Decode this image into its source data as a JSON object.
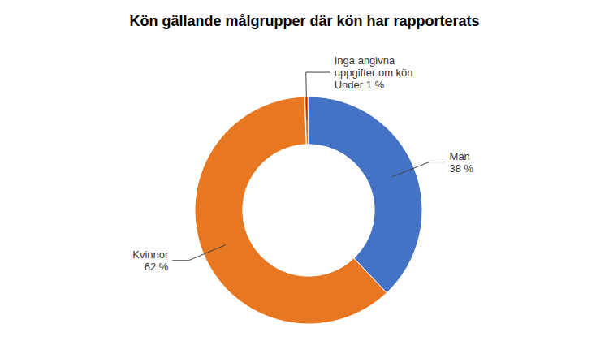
{
  "chart_data": {
    "type": "pie",
    "title": "Kön gällande målgrupper där kön har rapporterats",
    "categories": [
      "Inga angivna\nuppgifter om kön",
      "Män",
      "Kvinnor"
    ],
    "values": [
      0.5,
      38.0,
      61.5
    ],
    "value_labels": [
      "Under 1 %",
      "38 %",
      "62 %"
    ],
    "colors": [
      "#E87722",
      "#4472C4",
      "#E87722"
    ],
    "data_labels": true
  }
}
